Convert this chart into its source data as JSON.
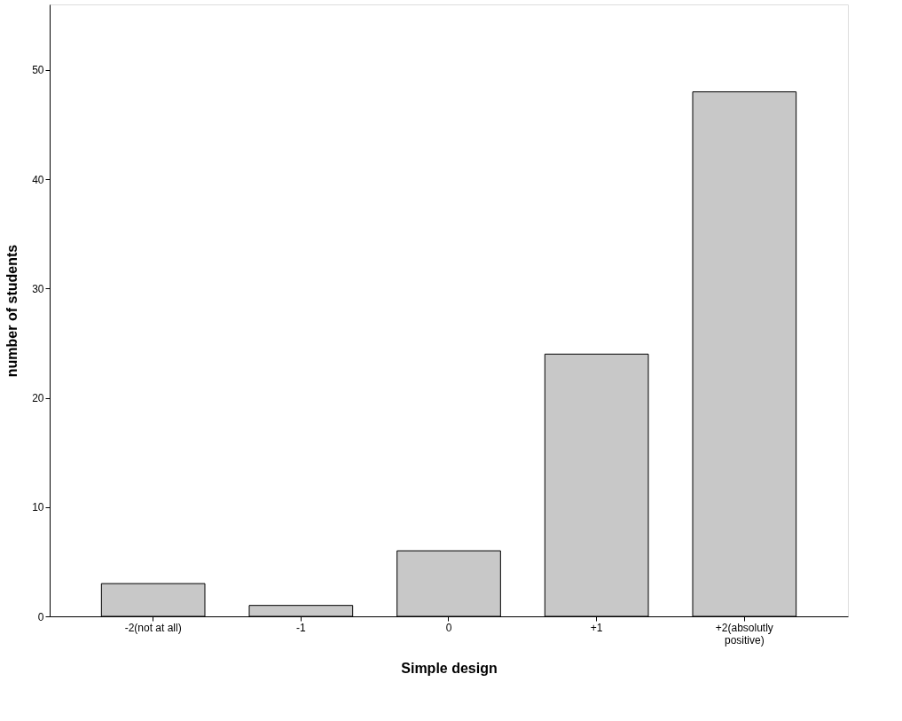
{
  "chart_data": {
    "type": "bar",
    "xlabel": "Simple design",
    "ylabel": "number of students",
    "categories": [
      "-2(not at all)",
      "-1",
      "0",
      "+1",
      "+2(absolutly positive)"
    ],
    "values": [
      3,
      1,
      6,
      24,
      48
    ],
    "color": "#c8c8c8",
    "ylim": [
      0,
      56
    ],
    "yticks": [
      0,
      10,
      20,
      30,
      40,
      50
    ],
    "grid": false
  }
}
